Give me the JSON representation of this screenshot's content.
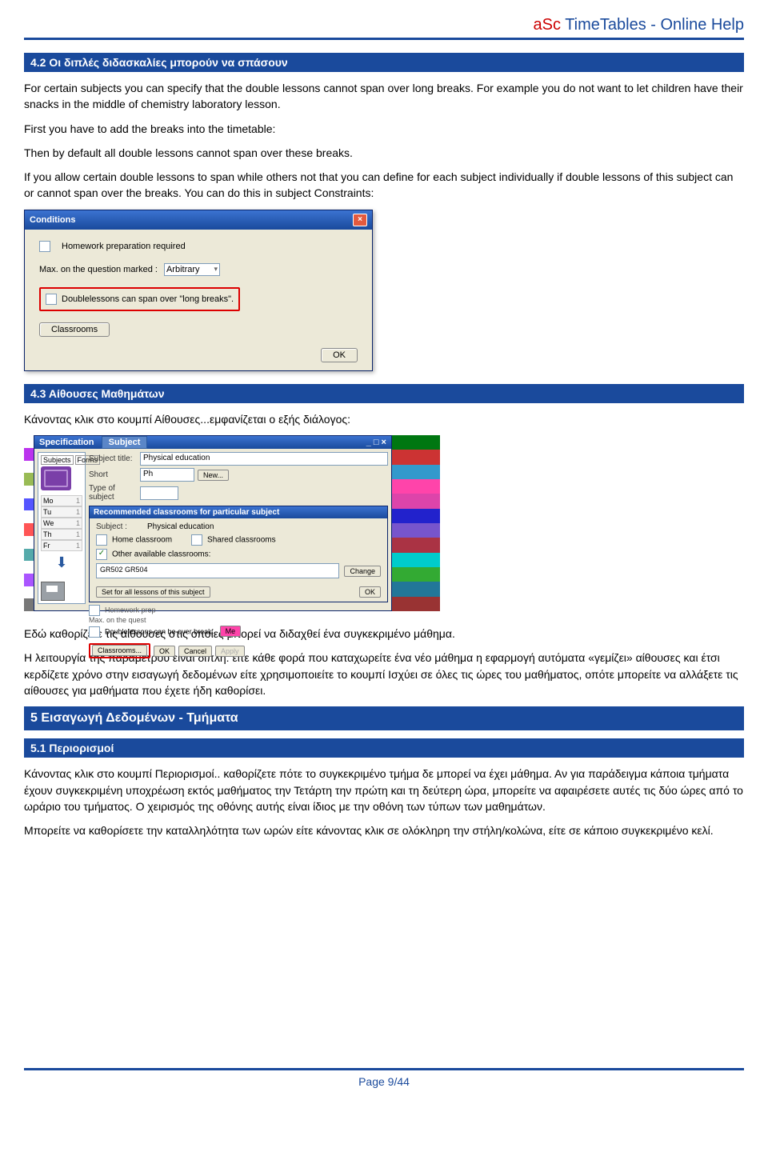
{
  "title_asc": "aSc",
  "title_tt": " TimeTables - Online Help",
  "sec42": "4.2 Οι διπλές διδασκαλίες μπορούν να σπάσουν",
  "p1": "For certain subjects you can specify that the double lessons cannot span over long breaks. For example you do not want to let children have their snacks in the middle of chemistry laboratory lesson.",
  "p2": "First you have to add the breaks into the timetable:",
  "p3": "Then by default all double lessons cannot span over these breaks.",
  "p4": "If you allow certain double lessons to span while others not that you can define for each subject individually if double lessons of this subject can or cannot span over the breaks. You can do this in subject Constraints:",
  "sec43": "4.3 Αίθουσες Μαθημάτων",
  "p5": "Κάνοντας κλικ στο κουμπί Αίθουσες...εμφανίζεται ο εξής διάλογος:",
  "p6": "Εδώ καθορίζετε τις αίθουσες στις οποίες μπορεί να διδαχθεί ένα συγκεκριμένο μάθημα.",
  "p7": "Η λειτουργία της παραμέτρου είναι διπλή: είτε κάθε φορά που καταχωρείτε ένα νέο μάθημα η εφαρμογή αυτόματα «γεμίζει» αίθουσες και έτσι κερδίζετε χρόνο στην εισαγωγή δεδομένων είτε χρησιμοποιείτε το κουμπί Ισχύει σε όλες τις ώρες του μαθήματος, οπότε μπορείτε να αλλάξετε τις αίθουσες για μαθήματα που έχετε ήδη καθορίσει.",
  "sec5": "5 Εισαγωγή Δεδομένων - Τμήματα",
  "sec51": "5.1 Περιορισμοί",
  "p8": "Κάνοντας κλικ στο κουμπί Περιορισμοί.. καθορίζετε πότε το συγκεκριμένο τμήμα δε μπορεί να έχει μάθημα. Αν για παράδειγμα κάποια τμήματα έχουν συγκεκριμένη υποχρέωση εκτός μαθήματος την Τετάρτη την πρώτη και τη δεύτερη ώρα, μπορείτε να αφαιρέσετε αυτές τις δύο ώρες από το ωράριο του τμήματος. Ο χειρισμός της οθόνης αυτής είναι ίδιος με την οθόνη των τύπων των μαθημάτων.",
  "p9": "Μπορείτε να καθορίσετε την καταλληλότητα των ωρών είτε κάνοντας κλικ σε ολόκληρη την στήλη/κολώνα, είτε σε κάποιο συγκεκριμένο κελί.",
  "pagenum": "Page 9/44",
  "cond": {
    "title": "Conditions",
    "homework": "Homework preparation required",
    "maxlabel": "Max. on the question marked :",
    "arbitrary": "Arbitrary",
    "doublelessons": "Doublelessons can span over \"long breaks\".",
    "classrooms": "Classrooms",
    "ok": "OK"
  },
  "spec": {
    "title": "Specification",
    "tab": "Subject",
    "subjects": "Subjects",
    "forms": "Forms",
    "subject_title_lbl": "Subject title:",
    "subject_title_val": "Physical education",
    "short_lbl": "Short",
    "short_val": "Ph",
    "type_lbl": "Type of subject",
    "new": "New...",
    "days": [
      "Mo",
      "Tu",
      "We",
      "Th",
      "Fr"
    ],
    "rec_title": "Recommended classrooms for particular subject",
    "subject_lbl": "Subject :",
    "home": "Home classroom",
    "shared": "Shared classrooms",
    "other": "Other available classrooms:",
    "room": "GR502 GR504",
    "change": "Change",
    "setall": "Set for all lessons of this subject",
    "ok": "OK",
    "hw": "Homework prep",
    "maxq": "Max. on the quest",
    "dbl": "Doublelessons can be over break.",
    "classrooms": "Classrooms...",
    "cancel": "Cancel",
    "apply": "Apply",
    "me": "Me"
  },
  "stripL": [
    "#fff",
    "#b3e",
    "#fff",
    "#9b5",
    "#fff",
    "#55f",
    "#fff",
    "#f55",
    "#fff",
    "#5aa",
    "#fff",
    "#a5f",
    "#fff",
    "#777"
  ],
  "stripR": [
    "#071",
    "#c33",
    "#39c",
    "#f4a",
    "#d4a",
    "#22c",
    "#75c",
    "#a34",
    "#0cc",
    "#3a3",
    "#279",
    "#933"
  ]
}
